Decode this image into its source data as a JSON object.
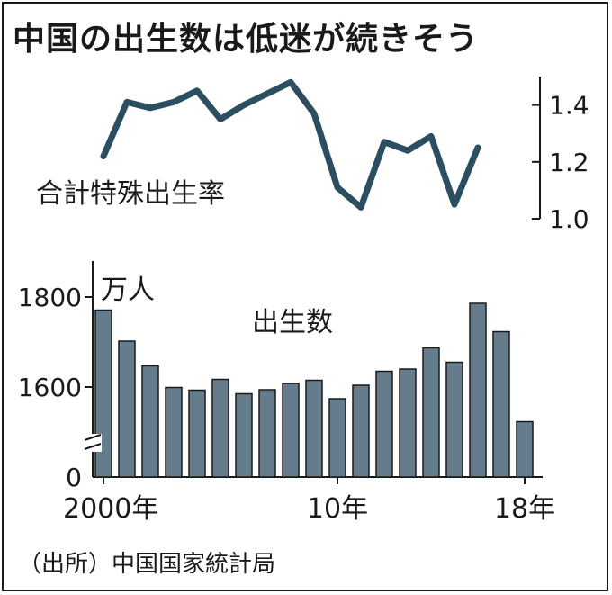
{
  "title": "中国の出生数は低迷が続きそう",
  "source": "（出所）中国国家統計局",
  "chart_data": [
    {
      "type": "line",
      "label": "合計特殊出生率",
      "x": [
        2000,
        2001,
        2002,
        2003,
        2004,
        2005,
        2006,
        2007,
        2008,
        2009,
        2010,
        2011,
        2012,
        2013,
        2014,
        2015,
        2016
      ],
      "values": [
        1.22,
        1.41,
        1.39,
        1.41,
        1.45,
        1.35,
        1.4,
        1.44,
        1.48,
        1.37,
        1.11,
        1.04,
        1.27,
        1.24,
        1.29,
        1.05,
        1.25
      ],
      "ylim": [
        1.0,
        1.5
      ],
      "y_ticks": [
        "1.4",
        "1.2",
        "1.0"
      ],
      "y_tick_values": [
        1.4,
        1.2,
        1.0
      ],
      "axis_side": "right"
    },
    {
      "type": "bar",
      "label": "出生数",
      "unit": "万人",
      "x": [
        2000,
        2001,
        2002,
        2003,
        2004,
        2005,
        2006,
        2007,
        2008,
        2009,
        2010,
        2011,
        2012,
        2013,
        2014,
        2015,
        2016,
        2017,
        2018
      ],
      "values": [
        1771,
        1702,
        1647,
        1599,
        1593,
        1617,
        1585,
        1594,
        1608,
        1615,
        1574,
        1604,
        1635,
        1640,
        1687,
        1655,
        1786,
        1723,
        1523
      ],
      "ylim": [
        1400,
        1880
      ],
      "y_ticks": [
        "1800",
        "1600",
        "0"
      ],
      "y_tick_values": [
        1800,
        1600,
        0
      ],
      "axis_break": true,
      "x_tick_labels": [
        "2000年",
        "10年",
        "18年"
      ],
      "x_tick_years": [
        2000,
        2010,
        2018
      ]
    }
  ]
}
